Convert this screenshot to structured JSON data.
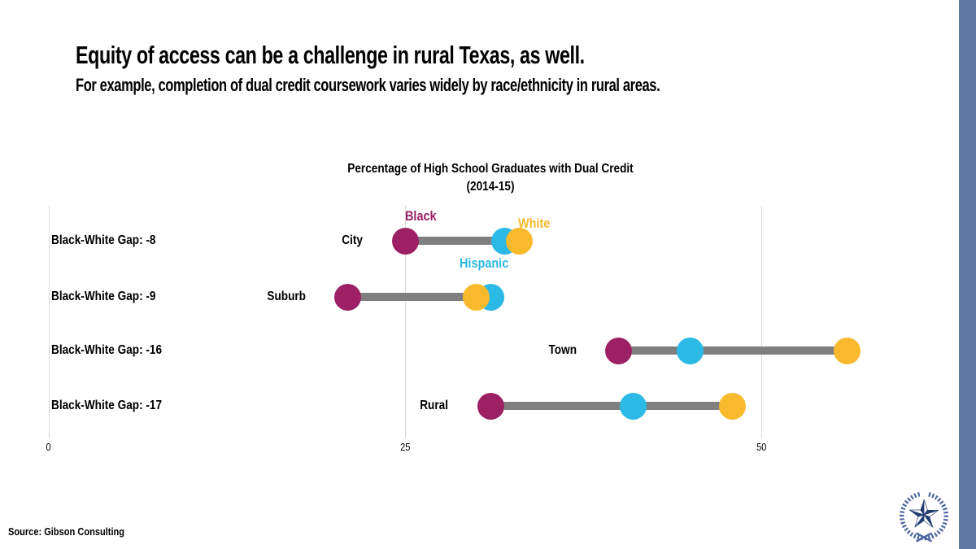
{
  "slide": {
    "title": "Equity of access can be a challenge in rural Texas, as well.",
    "subtitle": "For example, completion of dual credit coursework varies widely by race/ethnicity in rural areas.",
    "source": "Source: Gibson Consulting",
    "accent_bar_color": "#6279A4",
    "logo": {
      "name": "texas-star-wreath",
      "wreath_color": "#4D66A3",
      "star_color": "#223B6E"
    }
  },
  "chart_data": {
    "type": "dumbbell",
    "title_line1": "Percentage of High School Graduates with Dual Credit",
    "title_line2": "(2014-15)",
    "categories": [
      "City",
      "Suburb",
      "Town",
      "Rural"
    ],
    "gap_labels": [
      "Black-White Gap: -8",
      "Black-White Gap: -9",
      "Black-White Gap: -16",
      "Black-White Gap: -17"
    ],
    "series": [
      {
        "name": "Black",
        "color": "#9C2063",
        "values": [
          25,
          21,
          40,
          31
        ]
      },
      {
        "name": "Hispanic",
        "color": "#2BB9E6",
        "values": [
          32,
          31,
          45,
          41
        ]
      },
      {
        "name": "White",
        "color": "#F8BA2C",
        "values": [
          33,
          30,
          56,
          48
        ]
      }
    ],
    "x_ticks": [
      0,
      25,
      50
    ],
    "xlim": [
      0,
      65
    ],
    "grid": "vertical-only",
    "connector_color": "#7F7F7F",
    "gridline_color": "#D9D9D9",
    "legend_position": "annotations-on-first-row",
    "legend": [
      {
        "label": "Black",
        "color": "#9C2063"
      },
      {
        "label": "White",
        "color": "#F8BA2C"
      },
      {
        "label": "Hispanic",
        "color": "#2BB9E6"
      }
    ]
  }
}
